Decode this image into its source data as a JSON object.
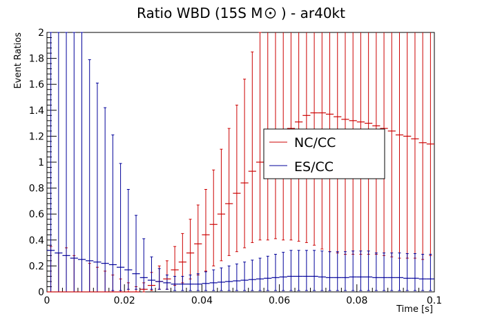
{
  "chart_data": {
    "type": "line",
    "title": "Ratio WBD (15S M⊙ ) - ar40kt",
    "title_parts": {
      "before": "Ratio WBD (15S M",
      "after": " ) - ar40kt",
      "symbol_name": "sun-symbol"
    },
    "xlabel": "Time [s]",
    "ylabel": "Event Ratios",
    "xlim": [
      0,
      0.1
    ],
    "ylim": [
      0,
      2
    ],
    "x_ticks": [
      "0",
      "0.02",
      "0.04",
      "0.06",
      "0.08",
      "0.1"
    ],
    "y_ticks": [
      "0",
      "0.2",
      "0.4",
      "0.6",
      "0.8",
      "1",
      "1.2",
      "1.4",
      "1.6",
      "1.8",
      "2"
    ],
    "legend_position": "center-right",
    "grid": false,
    "error_bars": true,
    "series": [
      {
        "name": "NC/CC",
        "color": "#cc0000",
        "x": [
          0.001,
          0.003,
          0.005,
          0.007,
          0.009,
          0.011,
          0.013,
          0.015,
          0.017,
          0.019,
          0.021,
          0.023,
          0.025,
          0.027,
          0.029,
          0.031,
          0.033,
          0.035,
          0.037,
          0.039,
          0.041,
          0.043,
          0.045,
          0.047,
          0.049,
          0.051,
          0.053,
          0.055,
          0.057,
          0.059,
          0.061,
          0.063,
          0.065,
          0.067,
          0.069,
          0.071,
          0.073,
          0.075,
          0.077,
          0.079,
          0.081,
          0.083,
          0.085,
          0.087,
          0.089,
          0.091,
          0.093,
          0.095,
          0.097,
          0.099
        ],
        "y": [
          0.0,
          0.0,
          0.0,
          0.0,
          0.0,
          0.0,
          0.0,
          0.0,
          0.0,
          0.0,
          0.0,
          0.0,
          0.02,
          0.05,
          0.08,
          0.1,
          0.17,
          0.23,
          0.3,
          0.37,
          0.44,
          0.52,
          0.6,
          0.68,
          0.76,
          0.84,
          0.93,
          1.0,
          1.06,
          1.14,
          1.2,
          1.26,
          1.31,
          1.36,
          1.38,
          1.38,
          1.37,
          1.35,
          1.33,
          1.32,
          1.31,
          1.3,
          1.28,
          1.26,
          1.24,
          1.21,
          1.2,
          1.18,
          1.15,
          1.14
        ],
        "err_lo": [
          0.0,
          0.0,
          0.0,
          0.0,
          0.0,
          0.0,
          0.0,
          0.0,
          0.0,
          0.0,
          0.0,
          0.0,
          0.02,
          0.04,
          0.06,
          0.08,
          0.12,
          0.16,
          0.2,
          0.24,
          0.28,
          0.32,
          0.36,
          0.4,
          0.45,
          0.5,
          0.55,
          0.6,
          0.66,
          0.73,
          0.8,
          0.86,
          0.92,
          0.98,
          1.02,
          1.05,
          1.06,
          1.05,
          1.04,
          1.03,
          1.02,
          1.01,
          0.99,
          0.98,
          0.97,
          0.95,
          0.94,
          0.92,
          0.9,
          0.86
        ],
        "err_hi": [
          0.35,
          0.3,
          0.34,
          0.28,
          0.25,
          0.22,
          0.19,
          0.16,
          0.13,
          0.1,
          0.07,
          0.04,
          0.05,
          0.1,
          0.12,
          0.14,
          0.18,
          0.22,
          0.26,
          0.3,
          0.35,
          0.42,
          0.5,
          0.58,
          0.68,
          0.8,
          0.92,
          1.0,
          1.0,
          1.0,
          1.0,
          1.0,
          1.0,
          1.0,
          1.0,
          1.0,
          1.0,
          1.0,
          1.0,
          1.0,
          1.0,
          1.0,
          1.0,
          1.0,
          1.0,
          1.0,
          1.0,
          1.0,
          1.0,
          1.0
        ]
      },
      {
        "name": "ES/CC",
        "color": "#000099",
        "x": [
          0.001,
          0.003,
          0.005,
          0.007,
          0.009,
          0.011,
          0.013,
          0.015,
          0.017,
          0.019,
          0.021,
          0.023,
          0.025,
          0.027,
          0.029,
          0.031,
          0.033,
          0.035,
          0.037,
          0.039,
          0.041,
          0.043,
          0.045,
          0.047,
          0.049,
          0.051,
          0.053,
          0.055,
          0.057,
          0.059,
          0.061,
          0.063,
          0.065,
          0.067,
          0.069,
          0.071,
          0.073,
          0.075,
          0.077,
          0.079,
          0.081,
          0.083,
          0.085,
          0.087,
          0.089,
          0.091,
          0.093,
          0.095,
          0.097,
          0.099
        ],
        "y": [
          0.32,
          0.3,
          0.28,
          0.26,
          0.25,
          0.24,
          0.23,
          0.22,
          0.21,
          0.19,
          0.17,
          0.14,
          0.11,
          0.09,
          0.08,
          0.07,
          0.06,
          0.06,
          0.06,
          0.06,
          0.065,
          0.07,
          0.075,
          0.08,
          0.085,
          0.09,
          0.095,
          0.1,
          0.105,
          0.11,
          0.115,
          0.12,
          0.12,
          0.12,
          0.12,
          0.115,
          0.11,
          0.11,
          0.11,
          0.115,
          0.115,
          0.115,
          0.11,
          0.11,
          0.11,
          0.11,
          0.105,
          0.105,
          0.1,
          0.1
        ],
        "err_lo": [
          0.32,
          0.3,
          0.28,
          0.26,
          0.25,
          0.24,
          0.23,
          0.22,
          0.2,
          0.18,
          0.15,
          0.12,
          0.09,
          0.07,
          0.06,
          0.05,
          0.05,
          0.05,
          0.05,
          0.05,
          0.055,
          0.06,
          0.065,
          0.07,
          0.075,
          0.08,
          0.085,
          0.09,
          0.095,
          0.1,
          0.105,
          0.11,
          0.11,
          0.11,
          0.11,
          0.105,
          0.1,
          0.1,
          0.1,
          0.105,
          0.105,
          0.105,
          0.1,
          0.1,
          0.1,
          0.1,
          0.095,
          0.095,
          0.09,
          0.09
        ],
        "err_hi": [
          1.68,
          1.7,
          1.72,
          1.74,
          1.75,
          1.55,
          1.38,
          1.2,
          1.0,
          0.8,
          0.62,
          0.45,
          0.3,
          0.18,
          0.1,
          0.06,
          0.06,
          0.06,
          0.07,
          0.08,
          0.09,
          0.1,
          0.11,
          0.12,
          0.13,
          0.14,
          0.15,
          0.16,
          0.17,
          0.18,
          0.19,
          0.2,
          0.2,
          0.2,
          0.2,
          0.2,
          0.2,
          0.2,
          0.2,
          0.2,
          0.2,
          0.2,
          0.19,
          0.19,
          0.19,
          0.19,
          0.19,
          0.19,
          0.19,
          0.19
        ]
      }
    ]
  }
}
